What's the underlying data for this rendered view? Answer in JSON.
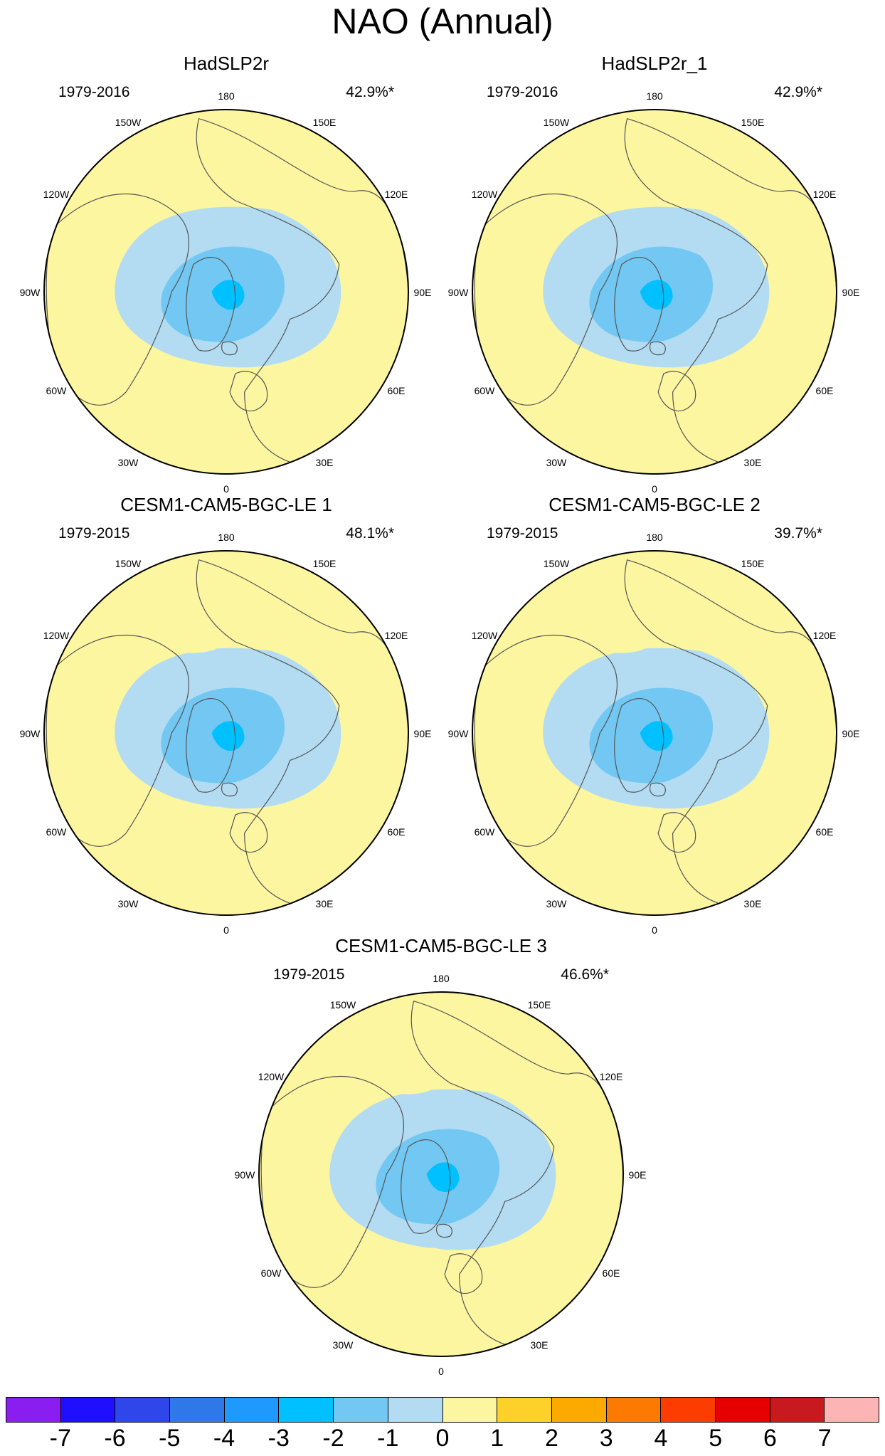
{
  "title": "NAO (Annual)",
  "colors": {
    "ocean": "#b3dcf2",
    "land_line": "#555555",
    "levels": [
      "#8a1ef0",
      "#1e10ff",
      "#2e46ea",
      "#2e78ea",
      "#1e9aff",
      "#00c0ff",
      "#72c8f2",
      "#b3dcf2",
      "#fdf6a0",
      "#fdd12a",
      "#fdaa00",
      "#fd7a00",
      "#fd3c00",
      "#e60000",
      "#c81a1e",
      "#fdb4b4"
    ]
  },
  "longitude_labels": [
    "180",
    "150E",
    "120E",
    "90E",
    "60E",
    "30E",
    "0",
    "30W",
    "60W",
    "90W",
    "120W",
    "150W"
  ],
  "panels": [
    {
      "title": "HadSLP2r",
      "period": "1979-2016",
      "variance": "42.9%*",
      "lows": [
        -1,
        -2,
        -3
      ],
      "highs": []
    },
    {
      "title": "HadSLP2r_1",
      "period": "1979-2016",
      "variance": "42.9%*",
      "lows": [
        -1,
        -2,
        -3
      ],
      "highs": []
    },
    {
      "title": "CESM1-CAM5-BGC-LE 1",
      "period": "1979-2015",
      "variance": "48.1%*",
      "lows": [
        -1,
        -2,
        -3
      ],
      "highs": [
        1
      ]
    },
    {
      "title": "CESM1-CAM5-BGC-LE 2",
      "period": "1979-2015",
      "variance": "39.7%*",
      "lows": [
        -1,
        -2,
        -3
      ],
      "highs": [
        1
      ]
    },
    {
      "title": "CESM1-CAM5-BGC-LE 3",
      "period": "1979-2015",
      "variance": "46.6%*",
      "lows": [
        -1,
        -2,
        -3
      ],
      "highs": [
        1
      ]
    }
  ],
  "colorbar": {
    "labels": [
      "-7",
      "-6",
      "-5",
      "-4",
      "-3",
      "-2",
      "-1",
      "0",
      "1",
      "2",
      "3",
      "4",
      "5",
      "6",
      "7"
    ]
  }
}
